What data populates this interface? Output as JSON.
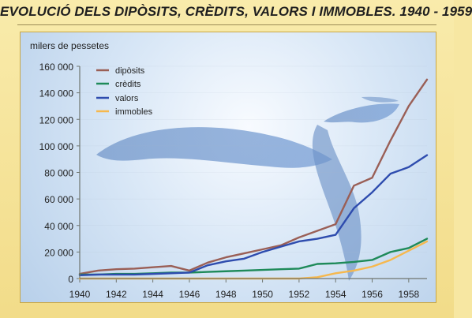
{
  "header": {
    "title": "EVOLUCIÓ DELS DIPÒSITS, CRÈDITS, VALORS I IMMOBLES. 1940 - 1959"
  },
  "chart_data": {
    "type": "line",
    "title": "EVOLUCIÓ DELS DIPÒSITS, CRÈDITS, VALORS I IMMOBLES. 1940 - 1959",
    "xlabel": "",
    "ylabel": "milers de pessetes",
    "x": [
      1940,
      1941,
      1942,
      1943,
      1944,
      1945,
      1946,
      1947,
      1948,
      1949,
      1950,
      1951,
      1952,
      1953,
      1954,
      1955,
      1956,
      1957,
      1958,
      1959
    ],
    "series": [
      {
        "name": "dipòsits",
        "color": "#9a5f56",
        "values": [
          3500,
          6000,
          7000,
          7500,
          8500,
          9500,
          6000,
          12000,
          16000,
          19000,
          22000,
          25000,
          31000,
          36000,
          41000,
          70000,
          76000,
          104000,
          130000,
          150000
        ]
      },
      {
        "name": "crèdits",
        "color": "#1e8a59",
        "values": [
          3000,
          3000,
          3500,
          3500,
          4000,
          4500,
          4500,
          5000,
          5500,
          6000,
          6500,
          7000,
          7500,
          11000,
          11500,
          12500,
          14000,
          20000,
          23000,
          30000
        ]
      },
      {
        "name": "valors",
        "color": "#2e4cae",
        "values": [
          2500,
          3000,
          3000,
          3000,
          3500,
          4000,
          4500,
          10000,
          13000,
          15000,
          20000,
          24000,
          28000,
          30000,
          33000,
          53000,
          65000,
          79000,
          84000,
          93000
        ]
      },
      {
        "name": "immobles",
        "color": "#f6b84e",
        "values": [
          0,
          0,
          0,
          0,
          0,
          0,
          0,
          0,
          0,
          0,
          0,
          0,
          0,
          1000,
          4000,
          6000,
          9000,
          14000,
          21000,
          28000
        ]
      }
    ],
    "ylim": [
      0,
      160000
    ],
    "xlim": [
      1940,
      1959
    ],
    "yticks": [
      "0",
      "20 000",
      "40 000",
      "60 000",
      "80 000",
      "100 000",
      "120 000",
      "140 000",
      "160 000"
    ],
    "xticks": [
      "1940",
      "1942",
      "1944",
      "1946",
      "1948",
      "1950",
      "1952",
      "1954",
      "1956",
      "1958"
    ],
    "legend_position": "top-left"
  }
}
